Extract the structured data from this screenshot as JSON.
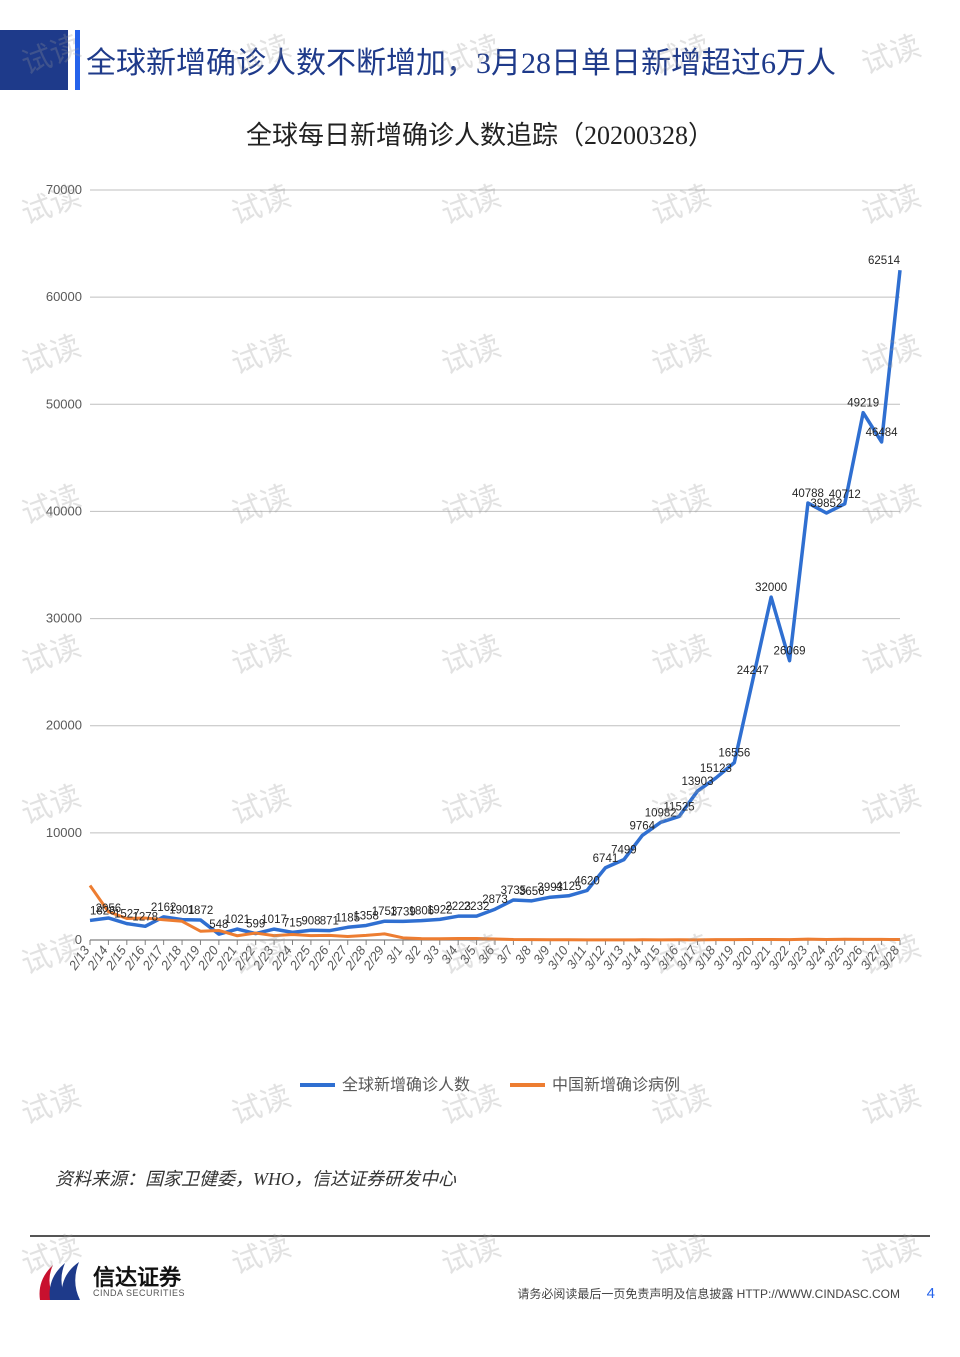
{
  "header": {
    "title": "全球新增确诊人数不断增加，3月28日单日新增超过6万人",
    "accent_color": "#1e3a8a",
    "border_color": "#2563eb"
  },
  "chart": {
    "subtitle": "全球每日新增确诊人数追踪（20200328）",
    "type": "line",
    "background_color": "#ffffff",
    "grid_color": "#bfbfbf",
    "axis_color": "#808080",
    "label_fontsize": 13,
    "tick_fontsize": 13,
    "ylim": [
      0,
      70000
    ],
    "ytick_step": 10000,
    "yticks": [
      0,
      10000,
      20000,
      30000,
      40000,
      50000,
      60000,
      70000
    ],
    "x_labels": [
      "2/13",
      "2/14",
      "2/15",
      "2/16",
      "2/17",
      "2/18",
      "2/19",
      "2/20",
      "2/21",
      "2/22",
      "2/23",
      "2/24",
      "2/25",
      "2/26",
      "2/27",
      "2/28",
      "2/29",
      "3/1",
      "3/2",
      "3/3",
      "3/4",
      "3/5",
      "3/6",
      "3/7",
      "3/8",
      "3/9",
      "3/10",
      "3/11",
      "3/12",
      "3/13",
      "3/14",
      "3/15",
      "3/16",
      "3/17",
      "3/18",
      "3/19",
      "3/20",
      "3/21",
      "3/22",
      "3/23",
      "3/24",
      "3/25",
      "3/26",
      "3/27",
      "3/28"
    ],
    "series": [
      {
        "name": "全球新增确诊人数",
        "color": "#2f6fd1",
        "line_width": 3.5,
        "marker": "none",
        "show_labels": true,
        "values": [
          1826,
          2056,
          1527,
          1278,
          2162,
          1901,
          1872,
          548,
          1021,
          599,
          1017,
          715,
          908,
          871,
          1185,
          1358,
          1753,
          1739,
          1806,
          1922,
          2223,
          2232,
          2873,
          3735,
          3656,
          3993,
          4125,
          4620,
          6741,
          7499,
          9764,
          10982,
          11525,
          13903,
          15123,
          16556,
          24247,
          32000,
          26069,
          40788,
          39852,
          40712,
          49219,
          46484,
          62514
        ]
      },
      {
        "name": "中国新增确诊病例",
        "color": "#ed7d31",
        "line_width": 3,
        "marker": "none",
        "show_labels": false,
        "values": [
          5090,
          2641,
          2009,
          2048,
          1886,
          1749,
          820,
          889,
          397,
          648,
          409,
          508,
          406,
          433,
          327,
          427,
          573,
          202,
          125,
          119,
          139,
          143,
          99,
          44,
          40,
          19,
          24,
          15,
          8,
          11,
          20,
          16,
          21,
          13,
          34,
          39,
          46,
          46,
          39,
          78,
          47,
          67,
          55,
          54,
          45
        ]
      }
    ],
    "legend": {
      "position": "bottom-center",
      "items": [
        {
          "label": "全球新增确诊人数",
          "color": "#2f6fd1"
        },
        {
          "label": "中国新增确诊病例",
          "color": "#ed7d31"
        }
      ]
    }
  },
  "source": "资料来源：国家卫健委，WHO，信达证券研发中心",
  "footer": {
    "logo_cn": "信达证券",
    "logo_en": "CINDA SECURITIES",
    "logo_colors": {
      "navy": "#1e3a8a",
      "red": "#c8102e"
    },
    "disclaimer": "请务必阅读最后一页免责声明及信息披露  HTTP://WWW.CINDASC.COM",
    "page": "4"
  },
  "watermark": {
    "text": "试读",
    "color": "rgba(150,150,150,0.28)",
    "fontsize": 30,
    "rotate_deg": -20
  }
}
